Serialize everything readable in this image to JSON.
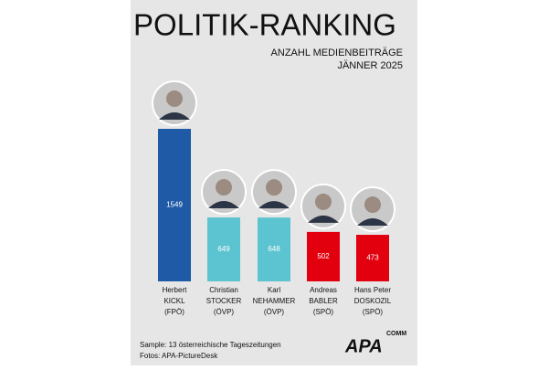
{
  "chart_data": {
    "type": "bar",
    "title": "POLITIK-RANKING",
    "subtitle": [
      "ANZAHL MEDIENBEITRÄGE",
      "JÄNNER 2025"
    ],
    "categories": [
      [
        "Herbert",
        "KICKL",
        "(FPÖ)"
      ],
      [
        "Christian",
        "STOCKER",
        "(ÖVP)"
      ],
      [
        "Karl",
        "NEHAMMER",
        "(ÖVP)"
      ],
      [
        "Andreas",
        "BABLER",
        "(SPÖ)"
      ],
      [
        "Hans Peter",
        "DOSKOZIL",
        "(SPÖ)"
      ]
    ],
    "values": [
      1549,
      649,
      648,
      502,
      473
    ],
    "colors": [
      "#1f5aa6",
      "#5cc3d0",
      "#5cc3d0",
      "#e2000f",
      "#e2000f"
    ],
    "footnotes": [
      "Sample: 13 österreichische Tageszeitungen",
      "Fotos: APA-PictureDesk"
    ],
    "logo": [
      "APA",
      "COMM"
    ]
  }
}
